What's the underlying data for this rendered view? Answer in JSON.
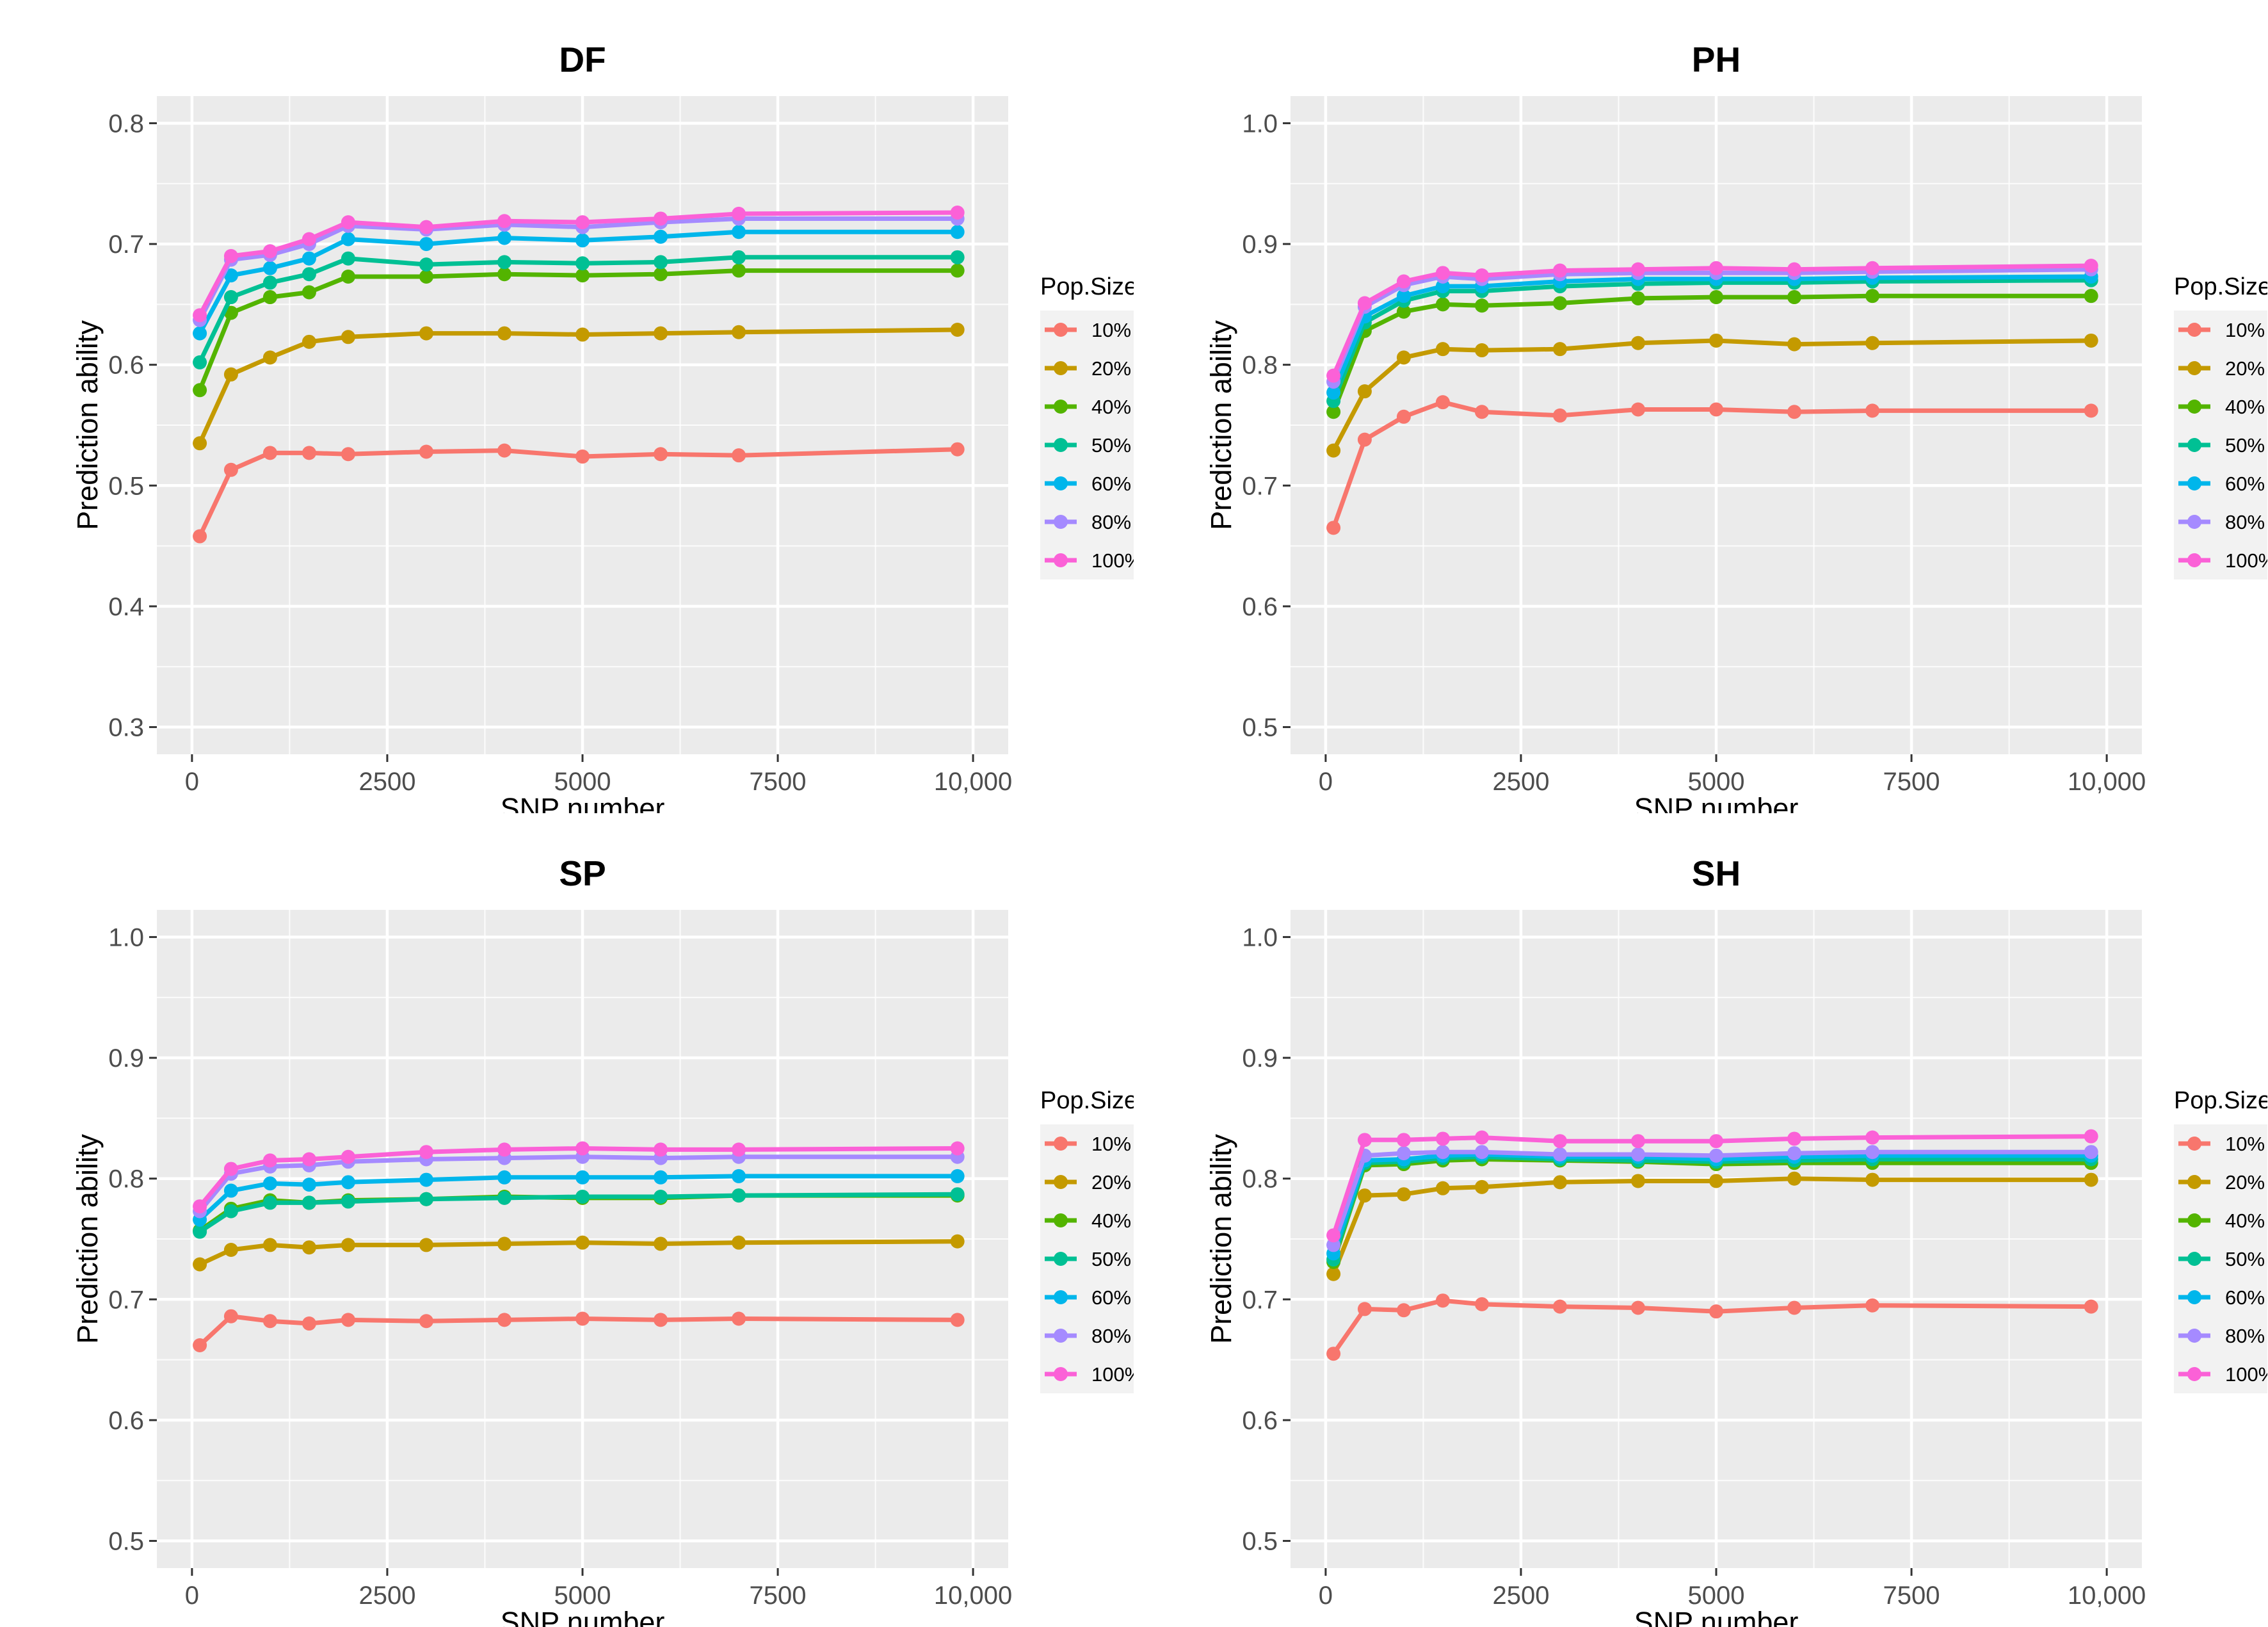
{
  "figure": {
    "legend_title": "Pop.Size",
    "legend_entries": [
      "10%",
      "20%",
      "40%",
      "50%",
      "60%",
      "80%",
      "100%"
    ],
    "colors": {
      "10%": "#F8766D",
      "20%": "#C49A00",
      "40%": "#53B400",
      "50%": "#00C094",
      "60%": "#00B6EB",
      "80%": "#A58AFF",
      "100%": "#FB61D7"
    }
  },
  "chart_data": [
    {
      "type": "line",
      "title": "DF",
      "xlabel": "SNP number",
      "ylabel": "Prediction ability",
      "xlim": [
        0,
        10000
      ],
      "ylim": [
        0.3,
        0.8
      ],
      "x_ticks": [
        0,
        2500,
        5000,
        7500,
        10000
      ],
      "x_tick_labels": [
        "0",
        "2500",
        "5000",
        "7500",
        "10,000"
      ],
      "y_ticks": [
        0.3,
        0.4,
        0.5,
        0.6,
        0.7,
        0.8
      ],
      "y_tick_labels": [
        "0.3",
        "0.4",
        "0.5",
        "0.6",
        "0.7",
        "0.8"
      ],
      "grid": true,
      "legend": "right",
      "x": [
        100,
        500,
        1000,
        1500,
        2000,
        3000,
        4000,
        5000,
        6000,
        7000,
        9800
      ],
      "series": [
        {
          "name": "10%",
          "values": [
            0.458,
            0.513,
            0.527,
            0.527,
            0.526,
            0.528,
            0.529,
            0.524,
            0.526,
            0.525,
            0.53
          ]
        },
        {
          "name": "20%",
          "values": [
            0.535,
            0.592,
            0.606,
            0.619,
            0.623,
            0.626,
            0.626,
            0.625,
            0.626,
            0.627,
            0.629
          ]
        },
        {
          "name": "40%",
          "values": [
            0.579,
            0.643,
            0.656,
            0.66,
            0.673,
            0.673,
            0.675,
            0.674,
            0.675,
            0.678,
            0.678
          ]
        },
        {
          "name": "50%",
          "values": [
            0.602,
            0.656,
            0.668,
            0.675,
            0.688,
            0.683,
            0.685,
            0.684,
            0.685,
            0.689,
            0.689
          ]
        },
        {
          "name": "60%",
          "values": [
            0.626,
            0.674,
            0.68,
            0.688,
            0.704,
            0.7,
            0.705,
            0.703,
            0.706,
            0.71,
            0.71
          ]
        },
        {
          "name": "80%",
          "values": [
            0.637,
            0.687,
            0.691,
            0.7,
            0.715,
            0.712,
            0.716,
            0.714,
            0.718,
            0.721,
            0.721
          ]
        },
        {
          "name": "100%",
          "values": [
            0.641,
            0.69,
            0.694,
            0.704,
            0.718,
            0.714,
            0.719,
            0.718,
            0.721,
            0.725,
            0.726
          ]
        }
      ]
    },
    {
      "type": "line",
      "title": "PH",
      "xlabel": "SNP number",
      "ylabel": "Prediction ability",
      "xlim": [
        0,
        10000
      ],
      "ylim": [
        0.5,
        1.0
      ],
      "x_ticks": [
        0,
        2500,
        5000,
        7500,
        10000
      ],
      "x_tick_labels": [
        "0",
        "2500",
        "5000",
        "7500",
        "10,000"
      ],
      "y_ticks": [
        0.5,
        0.6,
        0.7,
        0.8,
        0.9,
        1.0
      ],
      "y_tick_labels": [
        "0.5",
        "0.6",
        "0.7",
        "0.8",
        "0.9",
        "1.0"
      ],
      "grid": true,
      "legend": "right",
      "x": [
        100,
        500,
        1000,
        1500,
        2000,
        3000,
        4000,
        5000,
        6000,
        7000,
        9800
      ],
      "series": [
        {
          "name": "10%",
          "values": [
            0.665,
            0.738,
            0.757,
            0.769,
            0.761,
            0.758,
            0.763,
            0.763,
            0.761,
            0.762,
            0.762
          ]
        },
        {
          "name": "20%",
          "values": [
            0.729,
            0.778,
            0.806,
            0.813,
            0.812,
            0.813,
            0.818,
            0.82,
            0.817,
            0.818,
            0.82
          ]
        },
        {
          "name": "40%",
          "values": [
            0.761,
            0.828,
            0.844,
            0.85,
            0.849,
            0.851,
            0.855,
            0.856,
            0.856,
            0.857,
            0.857
          ]
        },
        {
          "name": "50%",
          "values": [
            0.77,
            0.835,
            0.853,
            0.861,
            0.861,
            0.865,
            0.867,
            0.868,
            0.868,
            0.869,
            0.87
          ]
        },
        {
          "name": "60%",
          "values": [
            0.777,
            0.84,
            0.857,
            0.865,
            0.865,
            0.869,
            0.871,
            0.871,
            0.871,
            0.872,
            0.873
          ]
        },
        {
          "name": "80%",
          "values": [
            0.786,
            0.848,
            0.866,
            0.873,
            0.871,
            0.875,
            0.876,
            0.876,
            0.876,
            0.877,
            0.879
          ]
        },
        {
          "name": "100%",
          "values": [
            0.791,
            0.851,
            0.869,
            0.876,
            0.874,
            0.878,
            0.879,
            0.88,
            0.879,
            0.88,
            0.882
          ]
        }
      ]
    },
    {
      "type": "line",
      "title": "SP",
      "xlabel": "SNP number",
      "ylabel": "Prediction ability",
      "xlim": [
        0,
        10000
      ],
      "ylim": [
        0.5,
        1.0
      ],
      "x_ticks": [
        0,
        2500,
        5000,
        7500,
        10000
      ],
      "x_tick_labels": [
        "0",
        "2500",
        "5000",
        "7500",
        "10,000"
      ],
      "y_ticks": [
        0.5,
        0.6,
        0.7,
        0.8,
        0.9,
        1.0
      ],
      "y_tick_labels": [
        "0.5",
        "0.6",
        "0.7",
        "0.8",
        "0.9",
        "1.0"
      ],
      "grid": true,
      "legend": "right",
      "x": [
        100,
        500,
        1000,
        1500,
        2000,
        3000,
        4000,
        5000,
        6000,
        7000,
        9800
      ],
      "series": [
        {
          "name": "10%",
          "values": [
            0.662,
            0.686,
            0.682,
            0.68,
            0.683,
            0.682,
            0.683,
            0.684,
            0.683,
            0.684,
            0.683
          ]
        },
        {
          "name": "20%",
          "values": [
            0.729,
            0.741,
            0.745,
            0.743,
            0.745,
            0.745,
            0.746,
            0.747,
            0.746,
            0.747,
            0.748
          ]
        },
        {
          "name": "40%",
          "values": [
            0.757,
            0.775,
            0.782,
            0.78,
            0.782,
            0.783,
            0.785,
            0.784,
            0.784,
            0.786,
            0.786
          ]
        },
        {
          "name": "50%",
          "values": [
            0.756,
            0.773,
            0.78,
            0.78,
            0.781,
            0.783,
            0.784,
            0.785,
            0.785,
            0.786,
            0.787
          ]
        },
        {
          "name": "60%",
          "values": [
            0.766,
            0.79,
            0.796,
            0.795,
            0.797,
            0.799,
            0.801,
            0.801,
            0.801,
            0.802,
            0.802
          ]
        },
        {
          "name": "80%",
          "values": [
            0.773,
            0.804,
            0.81,
            0.811,
            0.814,
            0.816,
            0.817,
            0.818,
            0.817,
            0.818,
            0.818
          ]
        },
        {
          "name": "100%",
          "values": [
            0.777,
            0.808,
            0.815,
            0.816,
            0.818,
            0.822,
            0.824,
            0.825,
            0.824,
            0.824,
            0.825
          ]
        }
      ]
    },
    {
      "type": "line",
      "title": "SH",
      "xlabel": "SNP number",
      "ylabel": "Prediction ability",
      "xlim": [
        0,
        10000
      ],
      "ylim": [
        0.5,
        1.0
      ],
      "x_ticks": [
        0,
        2500,
        5000,
        7500,
        10000
      ],
      "x_tick_labels": [
        "0",
        "2500",
        "5000",
        "7500",
        "10,000"
      ],
      "y_ticks": [
        0.5,
        0.6,
        0.7,
        0.8,
        0.9,
        1.0
      ],
      "y_tick_labels": [
        "0.5",
        "0.6",
        "0.7",
        "0.8",
        "0.9",
        "1.0"
      ],
      "grid": true,
      "legend": "right",
      "x": [
        100,
        500,
        1000,
        1500,
        2000,
        3000,
        4000,
        5000,
        6000,
        7000,
        9800
      ],
      "series": [
        {
          "name": "10%",
          "values": [
            0.655,
            0.692,
            0.691,
            0.699,
            0.696,
            0.694,
            0.693,
            0.69,
            0.693,
            0.695,
            0.694
          ]
        },
        {
          "name": "20%",
          "values": [
            0.721,
            0.786,
            0.787,
            0.792,
            0.793,
            0.797,
            0.798,
            0.798,
            0.8,
            0.799,
            0.799
          ]
        },
        {
          "name": "40%",
          "values": [
            0.731,
            0.811,
            0.812,
            0.815,
            0.816,
            0.815,
            0.814,
            0.812,
            0.813,
            0.813,
            0.813
          ]
        },
        {
          "name": "50%",
          "values": [
            0.733,
            0.813,
            0.814,
            0.817,
            0.818,
            0.816,
            0.815,
            0.814,
            0.815,
            0.816,
            0.816
          ]
        },
        {
          "name": "60%",
          "values": [
            0.738,
            0.815,
            0.816,
            0.819,
            0.82,
            0.818,
            0.818,
            0.816,
            0.818,
            0.819,
            0.819
          ]
        },
        {
          "name": "80%",
          "values": [
            0.745,
            0.819,
            0.821,
            0.822,
            0.822,
            0.82,
            0.82,
            0.819,
            0.821,
            0.822,
            0.822
          ]
        },
        {
          "name": "100%",
          "values": [
            0.753,
            0.832,
            0.832,
            0.833,
            0.834,
            0.831,
            0.831,
            0.831,
            0.833,
            0.834,
            0.835
          ]
        }
      ]
    }
  ]
}
